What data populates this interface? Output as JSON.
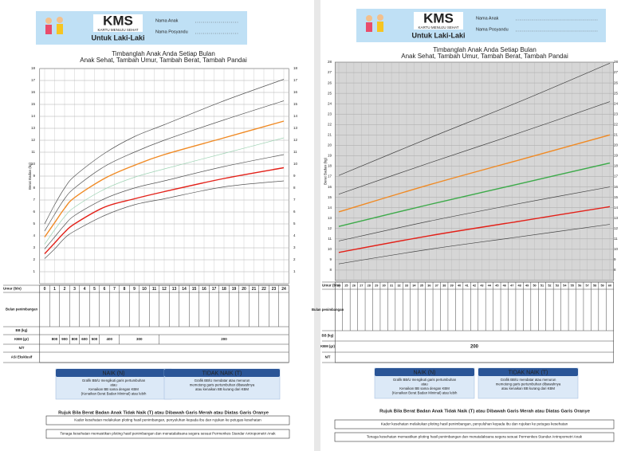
{
  "pages": [
    {
      "header": {
        "logo": "KMS",
        "logo_sub": "KARTU MENUJU SEHAT",
        "gender": "Untuk Laki-Laki",
        "fields": [
          "Nama Anak",
          "Nama Posyandu"
        ]
      },
      "title": "Timbanglah Anak Anda Setiap Bulan",
      "subtitle": "Anak Sehat, Tambah Umur, Tambah Berat, Tambah Pandai",
      "table": {
        "age_label": "Umur (bln)",
        "rows": [
          "Bulan penimbangan",
          "BB (kg)",
          "KBM (gr)",
          "N/T",
          "ASI Eksklusif"
        ],
        "kbm": [
          800,
          900,
          800,
          600,
          500,
          400,
          300,
          200
        ]
      },
      "naik": {
        "title": "NAIK (N)",
        "lines": [
          "Grafik BB/U mengikuti garis pertumbuhan",
          "atau",
          "Kenaikan BB sama dengan KBM",
          "(Kenaikan Berat Badan Minimal) atau lebih"
        ]
      },
      "tidak_naik": {
        "title": "TIDAK NAIK (T)",
        "lines": [
          "Grafik BB/U mendatar atau menurun",
          "memotong garis pertumbuhan dibawahnya",
          "atau kenaikan BB kurang dari KBM"
        ]
      },
      "warning": "Rujuk Bila Berat Badan Anak Tidak Naik (T) atau Dibawah Garis Merah atau Diatas Garis Oranye",
      "notes": [
        "Kader kesehatan melakukan ploting hasil penimbangan, penyuluhan kepada ibu dan rujukan ke petugas kesehatan",
        "Tenaga kesehatan memastikan ploting hasil penimbangan dan menatalaksana segera sesuai Permenkes Standar Antropometri Anak"
      ]
    },
    {
      "header": {
        "logo": "KMS",
        "logo_sub": "KARTU MENUJU SEHAT",
        "gender": "Untuk Laki-Laki",
        "fields": [
          "Nama Anak",
          "Nama Posyandu"
        ]
      },
      "title": "Timbanglah Anak Anda Setiap Bulan",
      "subtitle": "Anak Sehat, Tambah Umur, Tambah Berat, Tambah Pandai",
      "table": {
        "age_label": "Umur (bln)",
        "rows": [
          "Bulan penimbangan",
          "BB (kg)",
          "KBM (gr)",
          "N/T"
        ],
        "kbm": [
          200
        ]
      },
      "naik": {
        "title": "NAIK (N)",
        "lines": [
          "Grafik BB/U mengikuti garis pertumbuhan",
          "atau",
          "Kenaikan BB sama dengan KBM",
          "(Kenaikan Berat Badan Minimal) atau lebih"
        ]
      },
      "tidak_naik": {
        "title": "TIDAK NAIK (T)",
        "lines": [
          "Grafik BB/U mendatar atau menurun",
          "memotong garis pertumbuhan dibawahnya",
          "atau kenaikan BB kurang dari KBM"
        ]
      },
      "warning": "Rujuk Bila Berat Badan Anak Tidak Naik (T) atau Dibawah Garis Merah atau Diatas Garis Oranye",
      "notes": [
        "Kader kesehatan melakukan ploting hasil penimbangan, penyuluhan kepada ibu dan rujukan ke petugas kesehatan",
        "Tenaga kesehatan memastikan ploting hasil penimbangan dan menatalaksana segera sesuai Permenkes Standar Antropometri Anak"
      ]
    }
  ],
  "chart_data": [
    {
      "type": "line",
      "ylabel": "Berat Badan (kg)",
      "grid": true,
      "x": [
        0,
        1,
        2,
        3,
        6,
        9,
        12,
        18,
        24
      ],
      "xlim": [
        0,
        24
      ],
      "xticks": [
        0,
        1,
        2,
        3,
        4,
        5,
        6,
        7,
        8,
        9,
        10,
        11,
        12,
        13,
        14,
        15,
        16,
        17,
        18,
        19,
        20,
        21,
        22,
        23,
        24
      ],
      "ylim": [
        0,
        18
      ],
      "yticks": [
        1,
        2,
        3,
        4,
        5,
        6,
        7,
        8,
        9,
        10,
        11,
        12,
        13,
        14,
        15,
        16,
        17,
        18
      ],
      "series": [
        {
          "color": "#555555",
          "values": [
            5.0,
            6.6,
            8.0,
            9.0,
            10.9,
            12.3,
            13.3,
            15.3,
            17.1
          ]
        },
        {
          "color": "#555555",
          "values": [
            4.4,
            5.8,
            7.1,
            8.0,
            9.8,
            11.0,
            12.0,
            13.7,
            15.3
          ]
        },
        {
          "color": "#f08a24",
          "values": [
            3.9,
            5.1,
            6.3,
            7.2,
            8.8,
            9.9,
            10.8,
            12.2,
            13.6
          ]
        },
        {
          "color": "#9fd3b4",
          "values": [
            3.3,
            4.5,
            5.6,
            6.4,
            7.9,
            8.9,
            9.6,
            10.9,
            12.2
          ]
        },
        {
          "color": "#555555",
          "values": [
            2.9,
            3.9,
            4.9,
            5.7,
            7.1,
            8.0,
            8.6,
            9.8,
            10.8
          ]
        },
        {
          "color": "#e32119",
          "values": [
            2.5,
            3.4,
            4.3,
            5.0,
            6.4,
            7.1,
            7.7,
            8.8,
            9.7
          ]
        },
        {
          "color": "#555555",
          "values": [
            2.1,
            2.9,
            3.8,
            4.4,
            5.7,
            6.6,
            7.1,
            8.1,
            8.6
          ]
        }
      ]
    },
    {
      "type": "line",
      "ylabel": "Berat Badan (kg)",
      "grid": true,
      "x": [
        24,
        36,
        48,
        60
      ],
      "xlim": [
        24,
        60
      ],
      "xticks": [
        24,
        25,
        26,
        27,
        28,
        29,
        30,
        31,
        32,
        33,
        34,
        35,
        36,
        37,
        38,
        39,
        40,
        41,
        42,
        43,
        44,
        45,
        46,
        47,
        48,
        49,
        50,
        51,
        52,
        53,
        54,
        55,
        56,
        57,
        58,
        59,
        60
      ],
      "ylim": [
        7,
        28
      ],
      "yticks": [
        8,
        9,
        10,
        11,
        12,
        13,
        14,
        15,
        16,
        17,
        18,
        19,
        20,
        21,
        22,
        23,
        24,
        25,
        26,
        27,
        28
      ],
      "series": [
        {
          "color": "#444444",
          "values": [
            17.1,
            20.7,
            24.2,
            27.9
          ]
        },
        {
          "color": "#444444",
          "values": [
            15.3,
            18.3,
            21.2,
            24.2
          ]
        },
        {
          "color": "#f08a24",
          "values": [
            13.6,
            16.2,
            18.6,
            21.0
          ]
        },
        {
          "color": "#3daa4a",
          "values": [
            12.2,
            14.3,
            16.3,
            18.3
          ]
        },
        {
          "color": "#444444",
          "values": [
            10.8,
            12.7,
            14.4,
            16.0
          ]
        },
        {
          "color": "#e32119",
          "values": [
            9.7,
            11.3,
            12.7,
            14.1
          ]
        },
        {
          "color": "#444444",
          "values": [
            8.6,
            10.0,
            11.2,
            12.4
          ]
        }
      ]
    }
  ]
}
